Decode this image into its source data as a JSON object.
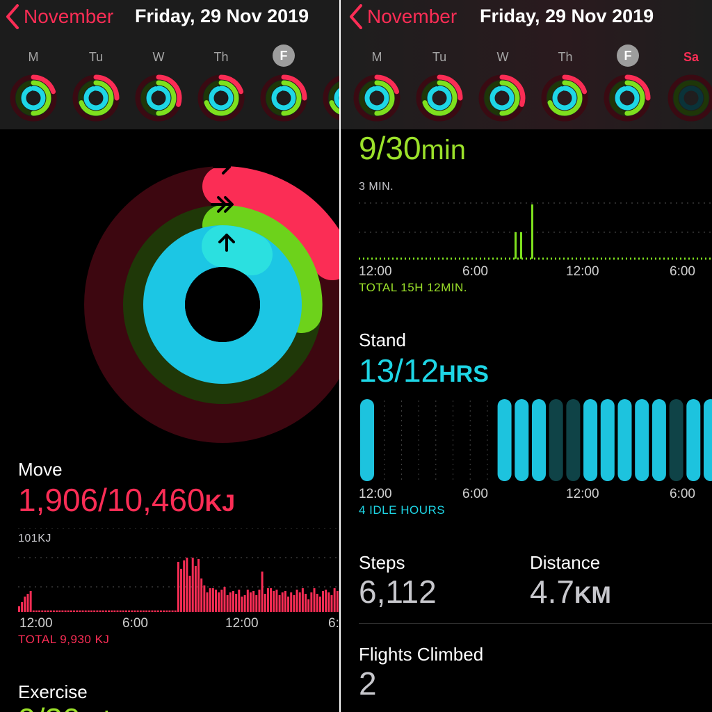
{
  "header": {
    "back_label": "November",
    "date": "Friday, 29 Nov 2019",
    "weekdays": [
      "M",
      "Tu",
      "W",
      "Th",
      "F",
      "Sa"
    ]
  },
  "colors": {
    "move": "#fb2d55",
    "exercise": "#9be12a",
    "stand": "#1ed6e6"
  },
  "move": {
    "label": "Move",
    "value": "1,906/10,460",
    "unit": "KJ",
    "max_label": "101KJ",
    "total": "TOTAL 9,930 KJ",
    "ticks": [
      "12:00",
      "6:00",
      "12:00",
      "6:"
    ]
  },
  "exercise": {
    "label": "Exercise",
    "value": "9/30",
    "unit": "min",
    "max_label": "3 MIN.",
    "total": "TOTAL 15H 12MIN.",
    "ticks": [
      "12:00",
      "6:00",
      "12:00",
      "6:00"
    ]
  },
  "stand": {
    "label": "Stand",
    "value": "13/12",
    "unit": "HRS",
    "total": "4 IDLE HOURS",
    "ticks": [
      "12:00",
      "6:00",
      "12:00",
      "6:00"
    ]
  },
  "steps": {
    "label": "Steps",
    "value": "6,112"
  },
  "distance": {
    "label": "Distance",
    "value": "4.7",
    "unit": "KM"
  },
  "flights": {
    "label": "Flights Climbed",
    "value": "2"
  }
}
